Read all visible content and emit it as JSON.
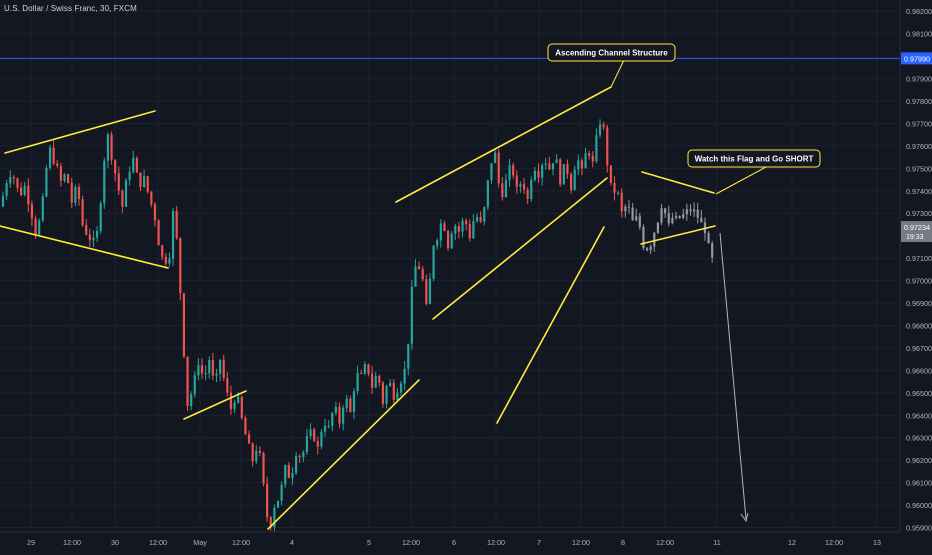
{
  "header": {
    "symbol_title": "U.S. Dollar / Swiss Franc, 30, FXCM"
  },
  "colors": {
    "background": "#131722",
    "grid": "#1e222d",
    "axis_text": "#b2b5be",
    "candle_up": "#26a69a",
    "candle_down": "#ef5350",
    "candle_recent": "#9598a1",
    "annotation_line": "#ffeb3b",
    "horizontal_line": "#2962ff",
    "price_badge": "#2962ff",
    "current_price_badge": "#787b86"
  },
  "chart_data": {
    "type": "candlestick",
    "title": "U.S. Dollar / Swiss Franc, 30, FXCM",
    "x_tick_labels": [
      "29",
      "12:00",
      "30",
      "12:00",
      "May",
      "12:00",
      "4",
      "5",
      "12:00",
      "6",
      "12:00",
      "7",
      "12:00",
      "8",
      "12:00",
      "11",
      "12",
      "12:00",
      "13"
    ],
    "y_tick_labels": [
      "0.98200",
      "0.98100",
      "0.97900",
      "0.97800",
      "0.97700",
      "0.97600",
      "0.97500",
      "0.97400",
      "0.97300",
      "0.97100",
      "0.97000",
      "0.96900",
      "0.96800",
      "0.96700",
      "0.96600",
      "0.96500",
      "0.96400",
      "0.96300",
      "0.96200",
      "0.96100",
      "0.96000",
      "0.95900"
    ],
    "ylim": [
      0.9588,
      0.9825
    ],
    "grid": true,
    "horizontal_line": {
      "price": 0.9799,
      "label": "0.97990"
    },
    "current_price": {
      "price": 0.97234,
      "label": "0.97234",
      "countdown": "19:33"
    },
    "annotations": [
      {
        "text": "Ascending Channel Structure"
      },
      {
        "text": "Watch this Flag and Go SHORT"
      }
    ],
    "price_path": [
      {
        "x": 0,
        "y": 0.9733
      },
      {
        "x": 3,
        "y": 0.974
      },
      {
        "x": 5,
        "y": 0.9749
      },
      {
        "x": 8,
        "y": 0.9746
      },
      {
        "x": 11,
        "y": 0.9738
      },
      {
        "x": 14,
        "y": 0.9742
      },
      {
        "x": 17,
        "y": 0.9733
      },
      {
        "x": 20,
        "y": 0.9722
      },
      {
        "x": 23,
        "y": 0.9728
      },
      {
        "x": 26,
        "y": 0.975
      },
      {
        "x": 28,
        "y": 0.9758
      },
      {
        "x": 31,
        "y": 0.9752
      },
      {
        "x": 34,
        "y": 0.9744
      },
      {
        "x": 37,
        "y": 0.9748
      },
      {
        "x": 40,
        "y": 0.9735
      },
      {
        "x": 43,
        "y": 0.9742
      },
      {
        "x": 46,
        "y": 0.9725
      },
      {
        "x": 49,
        "y": 0.972
      },
      {
        "x": 52,
        "y": 0.9717
      },
      {
        "x": 55,
        "y": 0.9723
      },
      {
        "x": 57,
        "y": 0.975
      },
      {
        "x": 60,
        "y": 0.9764
      },
      {
        "x": 63,
        "y": 0.9752
      },
      {
        "x": 65,
        "y": 0.9744
      },
      {
        "x": 68,
        "y": 0.9733
      },
      {
        "x": 71,
        "y": 0.9748
      },
      {
        "x": 74,
        "y": 0.9754
      },
      {
        "x": 77,
        "y": 0.9743
      },
      {
        "x": 80,
        "y": 0.9745
      },
      {
        "x": 83,
        "y": 0.9737
      },
      {
        "x": 86,
        "y": 0.9728
      },
      {
        "x": 89,
        "y": 0.9712
      },
      {
        "x": 91,
        "y": 0.9708
      },
      {
        "x": 94,
        "y": 0.9712
      },
      {
        "x": 96,
        "y": 0.973
      },
      {
        "x": 98,
        "y": 0.9718
      },
      {
        "x": 100,
        "y": 0.9695
      },
      {
        "x": 102,
        "y": 0.9668
      },
      {
        "x": 104,
        "y": 0.9645
      },
      {
        "x": 107,
        "y": 0.9652
      },
      {
        "x": 110,
        "y": 0.9664
      },
      {
        "x": 113,
        "y": 0.9656
      },
      {
        "x": 116,
        "y": 0.9665
      },
      {
        "x": 119,
        "y": 0.9652
      },
      {
        "x": 122,
        "y": 0.9665
      },
      {
        "x": 125,
        "y": 0.9652
      },
      {
        "x": 128,
        "y": 0.9643
      },
      {
        "x": 131,
        "y": 0.965
      },
      {
        "x": 134,
        "y": 0.9638
      },
      {
        "x": 137,
        "y": 0.9628
      },
      {
        "x": 140,
        "y": 0.962
      },
      {
        "x": 143,
        "y": 0.9628
      },
      {
        "x": 146,
        "y": 0.9608
      },
      {
        "x": 148,
        "y": 0.9595
      },
      {
        "x": 150,
        "y": 0.9592
      },
      {
        "x": 152,
        "y": 0.96
      },
      {
        "x": 155,
        "y": 0.9604
      },
      {
        "x": 158,
        "y": 0.9616
      },
      {
        "x": 161,
        "y": 0.9612
      },
      {
        "x": 164,
        "y": 0.9624
      },
      {
        "x": 167,
        "y": 0.9621
      },
      {
        "x": 170,
        "y": 0.9629
      },
      {
        "x": 173,
        "y": 0.9633
      },
      {
        "x": 176,
        "y": 0.9625
      },
      {
        "x": 179,
        "y": 0.9638
      },
      {
        "x": 182,
        "y": 0.9634
      },
      {
        "x": 185,
        "y": 0.9644
      },
      {
        "x": 188,
        "y": 0.9637
      },
      {
        "x": 191,
        "y": 0.9649
      },
      {
        "x": 194,
        "y": 0.9641
      },
      {
        "x": 197,
        "y": 0.9658
      },
      {
        "x": 200,
        "y": 0.9657
      },
      {
        "x": 203,
        "y": 0.9663
      },
      {
        "x": 206,
        "y": 0.9653
      },
      {
        "x": 209,
        "y": 0.9659
      },
      {
        "x": 212,
        "y": 0.9646
      },
      {
        "x": 215,
        "y": 0.9656
      },
      {
        "x": 218,
        "y": 0.9649
      },
      {
        "x": 221,
        "y": 0.9654
      },
      {
        "x": 224,
        "y": 0.966
      },
      {
        "x": 227,
        "y": 0.968
      },
      {
        "x": 229,
        "y": 0.971
      },
      {
        "x": 231,
        "y": 0.9702
      },
      {
        "x": 233,
        "y": 0.971
      },
      {
        "x": 235,
        "y": 0.969
      },
      {
        "x": 237,
        "y": 0.9685
      },
      {
        "x": 239,
        "y": 0.9715
      },
      {
        "x": 242,
        "y": 0.972
      },
      {
        "x": 245,
        "y": 0.9728
      },
      {
        "x": 248,
        "y": 0.9716
      },
      {
        "x": 251,
        "y": 0.9726
      },
      {
        "x": 254,
        "y": 0.9722
      },
      {
        "x": 257,
        "y": 0.9728
      },
      {
        "x": 260,
        "y": 0.972
      },
      {
        "x": 263,
        "y": 0.973
      },
      {
        "x": 266,
        "y": 0.9725
      },
      {
        "x": 269,
        "y": 0.9735
      },
      {
        "x": 271,
        "y": 0.9752
      },
      {
        "x": 274,
        "y": 0.9756
      },
      {
        "x": 277,
        "y": 0.9737
      },
      {
        "x": 280,
        "y": 0.9744
      },
      {
        "x": 283,
        "y": 0.9752
      },
      {
        "x": 286,
        "y": 0.974
      },
      {
        "x": 289,
        "y": 0.9745
      },
      {
        "x": 292,
        "y": 0.9736
      },
      {
        "x": 295,
        "y": 0.9752
      },
      {
        "x": 298,
        "y": 0.9748
      },
      {
        "x": 301,
        "y": 0.9755
      },
      {
        "x": 304,
        "y": 0.975
      },
      {
        "x": 307,
        "y": 0.9756
      },
      {
        "x": 310,
        "y": 0.9745
      },
      {
        "x": 313,
        "y": 0.9752
      },
      {
        "x": 316,
        "y": 0.9742
      },
      {
        "x": 319,
        "y": 0.9756
      },
      {
        "x": 322,
        "y": 0.9748
      },
      {
        "x": 325,
        "y": 0.976
      },
      {
        "x": 328,
        "y": 0.9752
      },
      {
        "x": 331,
        "y": 0.9768
      },
      {
        "x": 333,
        "y": 0.9774
      },
      {
        "x": 335,
        "y": 0.976
      },
      {
        "x": 337,
        "y": 0.9745
      },
      {
        "x": 339,
        "y": 0.9738
      },
      {
        "x": 341,
        "y": 0.9742
      },
      {
        "x": 344,
        "y": 0.973
      },
      {
        "x": 347,
        "y": 0.9734
      },
      {
        "x": 350,
        "y": 0.9726
      },
      {
        "x": 353,
        "y": 0.9728
      },
      {
        "x": 356,
        "y": 0.9716
      },
      {
        "x": 359,
        "y": 0.9714
      },
      {
        "x": 362,
        "y": 0.9722
      },
      {
        "x": 365,
        "y": 0.973
      },
      {
        "x": 367,
        "y": 0.9738
      },
      {
        "x": 369,
        "y": 0.9722
      },
      {
        "x": 371,
        "y": 0.9726
      },
      {
        "x": 373,
        "y": 0.973
      },
      {
        "x": 375,
        "y": 0.9724
      },
      {
        "x": 377,
        "y": 0.9732
      },
      {
        "x": 379,
        "y": 0.9726
      },
      {
        "x": 381,
        "y": 0.9735
      },
      {
        "x": 383,
        "y": 0.9728
      },
      {
        "x": 385,
        "y": 0.9733
      },
      {
        "x": 387,
        "y": 0.9724
      },
      {
        "x": 389,
        "y": 0.9726
      },
      {
        "x": 391,
        "y": 0.972
      },
      {
        "x": 393,
        "y": 0.9709
      }
    ]
  }
}
